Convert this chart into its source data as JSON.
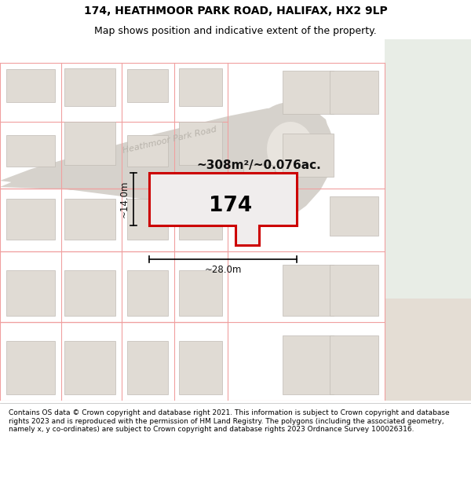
{
  "title_line1": "174, HEATHMOOR PARK ROAD, HALIFAX, HX2 9LP",
  "title_line2": "Map shows position and indicative extent of the property.",
  "area_text": "~308m²/~0.076ac.",
  "property_number": "174",
  "dim_width": "~28.0m",
  "dim_height": "~14.0m",
  "footer_text": "Contains OS data © Crown copyright and database right 2021. This information is subject to Crown copyright and database rights 2023 and is reproduced with the permission of HM Land Registry. The polygons (including the associated geometry, namely x, y co-ordinates) are subject to Crown copyright and database rights 2023 Ordnance Survey 100026316.",
  "map_bg": "#ffffff",
  "road_fill": "#d6d2cc",
  "road_edge": "#c8c3bb",
  "cul_fill": "#d0ccc5",
  "property_fill": "#f0eded",
  "property_border": "#cc0000",
  "building_fill": "#e0dbd4",
  "building_edge": "#e8a8a8",
  "plot_edge": "#f0a0a0",
  "green_fill": "#e8ede6",
  "tan_fill": "#e4ddd4",
  "road_label": "#b8b3ab",
  "dim_color": "#111111",
  "area_text_color": "#111111",
  "title_fontsize": 10,
  "subtitle_fontsize": 9,
  "footer_fontsize": 6.5
}
